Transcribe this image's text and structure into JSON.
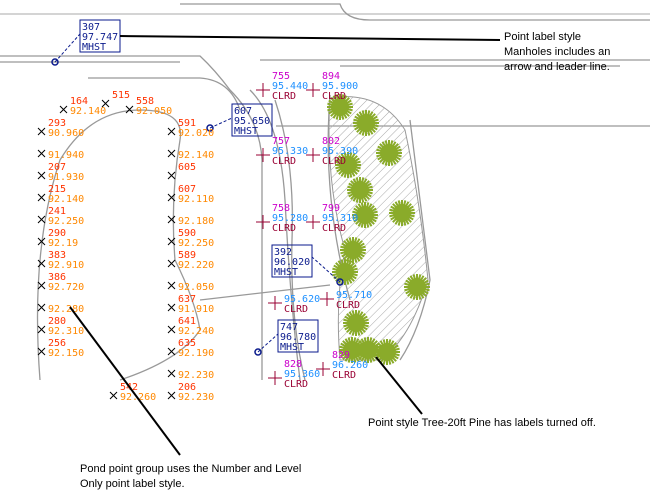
{
  "colors": {
    "manhole": "#0a1a8c",
    "number": "#cc00cc",
    "elevation": "#1e90ff",
    "description": "#990033",
    "pond_number": "#ff3300",
    "pond_elevation": "#ff8800",
    "tree": "#8aab2a",
    "linework": "#999999",
    "leader": "#000000"
  },
  "annotations": {
    "manholes": [
      "Point label style",
      "Manholes includes an",
      "arrow and leader line."
    ],
    "trees": "Point style Tree-20ft Pine has labels turned off.",
    "pond": [
      "Pond point group uses the Number and Level",
      "Only point label style."
    ]
  },
  "manholes": [
    {
      "number": "307",
      "elevation": "97.747",
      "description": "MHST"
    },
    {
      "number": "607",
      "elevation": "95.650",
      "description": "MHST"
    },
    {
      "number": "392",
      "elevation": "96.020",
      "description": "MHST"
    },
    {
      "number": "747",
      "elevation": "96.780",
      "description": "MHST"
    }
  ],
  "clearing_points": [
    {
      "number": "755",
      "elevation": "95.440",
      "description": "CLRD"
    },
    {
      "number": "894",
      "elevation": "95.900",
      "description": "CLRD"
    },
    {
      "number": "757",
      "elevation": "95.330",
      "description": "CLRD"
    },
    {
      "number": "802",
      "elevation": "95.390",
      "description": "CLRD"
    },
    {
      "number": "758",
      "elevation": "95.280",
      "description": "CLRD"
    },
    {
      "number": "799",
      "elevation": "95.310",
      "description": "CLRD"
    },
    {
      "number": "",
      "elevation": "95.620",
      "description": "CLRD"
    },
    {
      "number": "",
      "elevation": "95.710",
      "description": "CLRD"
    },
    {
      "number": "828",
      "elevation": "95.360",
      "description": "CLRD"
    },
    {
      "number": "829",
      "elevation": "96.260",
      "description": "CLRD"
    }
  ],
  "pond_points": [
    {
      "number": "164",
      "elevation": "92.140"
    },
    {
      "number": "515",
      "elevation": ""
    },
    {
      "number": "558",
      "elevation": "92.050"
    },
    {
      "number": "591",
      "elevation": "92.020"
    },
    {
      "number": "",
      "elevation": "92.140"
    },
    {
      "number": "605",
      "elevation": ""
    },
    {
      "number": "607",
      "elevation": "92.110"
    },
    {
      "number": "",
      "elevation": "92.180"
    },
    {
      "number": "293",
      "elevation": "90.960"
    },
    {
      "number": "",
      "elevation": "91.940"
    },
    {
      "number": "207",
      "elevation": "91.930"
    },
    {
      "number": "215",
      "elevation": "92.140"
    },
    {
      "number": "241",
      "elevation": "92.250"
    },
    {
      "number": "590",
      "elevation": "92.250"
    },
    {
      "number": "589",
      "elevation": "92.220"
    },
    {
      "number": "",
      "elevation": "92.050"
    },
    {
      "number": "290",
      "elevation": "92.19"
    },
    {
      "number": "383",
      "elevation": "92.910"
    },
    {
      "number": "386",
      "elevation": "92.720"
    },
    {
      "number": "",
      "elevation": "92.280"
    },
    {
      "number": "637",
      "elevation": "91.910"
    },
    {
      "number": "641",
      "elevation": "92.240"
    },
    {
      "number": "635",
      "elevation": "92.190"
    },
    {
      "number": "",
      "elevation": "92.230"
    },
    {
      "number": "206",
      "elevation": "92.230"
    },
    {
      "number": "542",
      "elevation": "92.260"
    },
    {
      "number": "280",
      "elevation": "92.310"
    },
    {
      "number": "256",
      "elevation": "92.150"
    }
  ],
  "tree_point_style": "Tree-20ft Pine",
  "tree_count": 14
}
